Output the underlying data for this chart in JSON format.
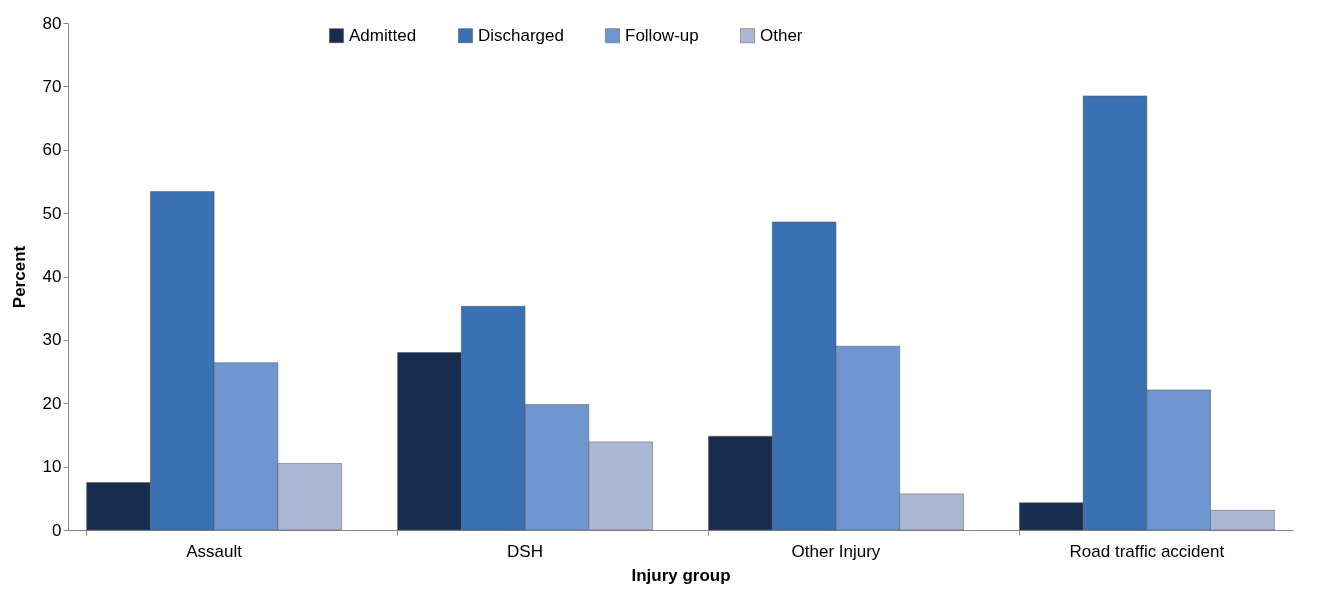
{
  "chart_data": {
    "type": "bar",
    "xlabel": "Injury group",
    "ylabel": "Percent",
    "categories": [
      "Assault",
      "DSH",
      "Other Injury",
      "Road traffic accident"
    ],
    "series": [
      {
        "name": "Admitted",
        "color": "#172d4e",
        "values": [
          7.5,
          28.0,
          14.8,
          4.3
        ]
      },
      {
        "name": "Discharged",
        "color": "#3a70b4",
        "values": [
          53.4,
          35.3,
          48.6,
          68.5
        ]
      },
      {
        "name": "Follow-up",
        "color": "#6f96cf",
        "values": [
          26.4,
          19.8,
          29.0,
          22.1
        ]
      },
      {
        "name": "Other",
        "color": "#aab8d4",
        "values": [
          10.5,
          13.9,
          5.7,
          3.1
        ]
      }
    ],
    "ylim": [
      0,
      80
    ],
    "yticks": [
      0,
      10,
      20,
      30,
      40,
      50,
      60,
      70,
      80
    ],
    "grid": false,
    "legend": "top"
  }
}
